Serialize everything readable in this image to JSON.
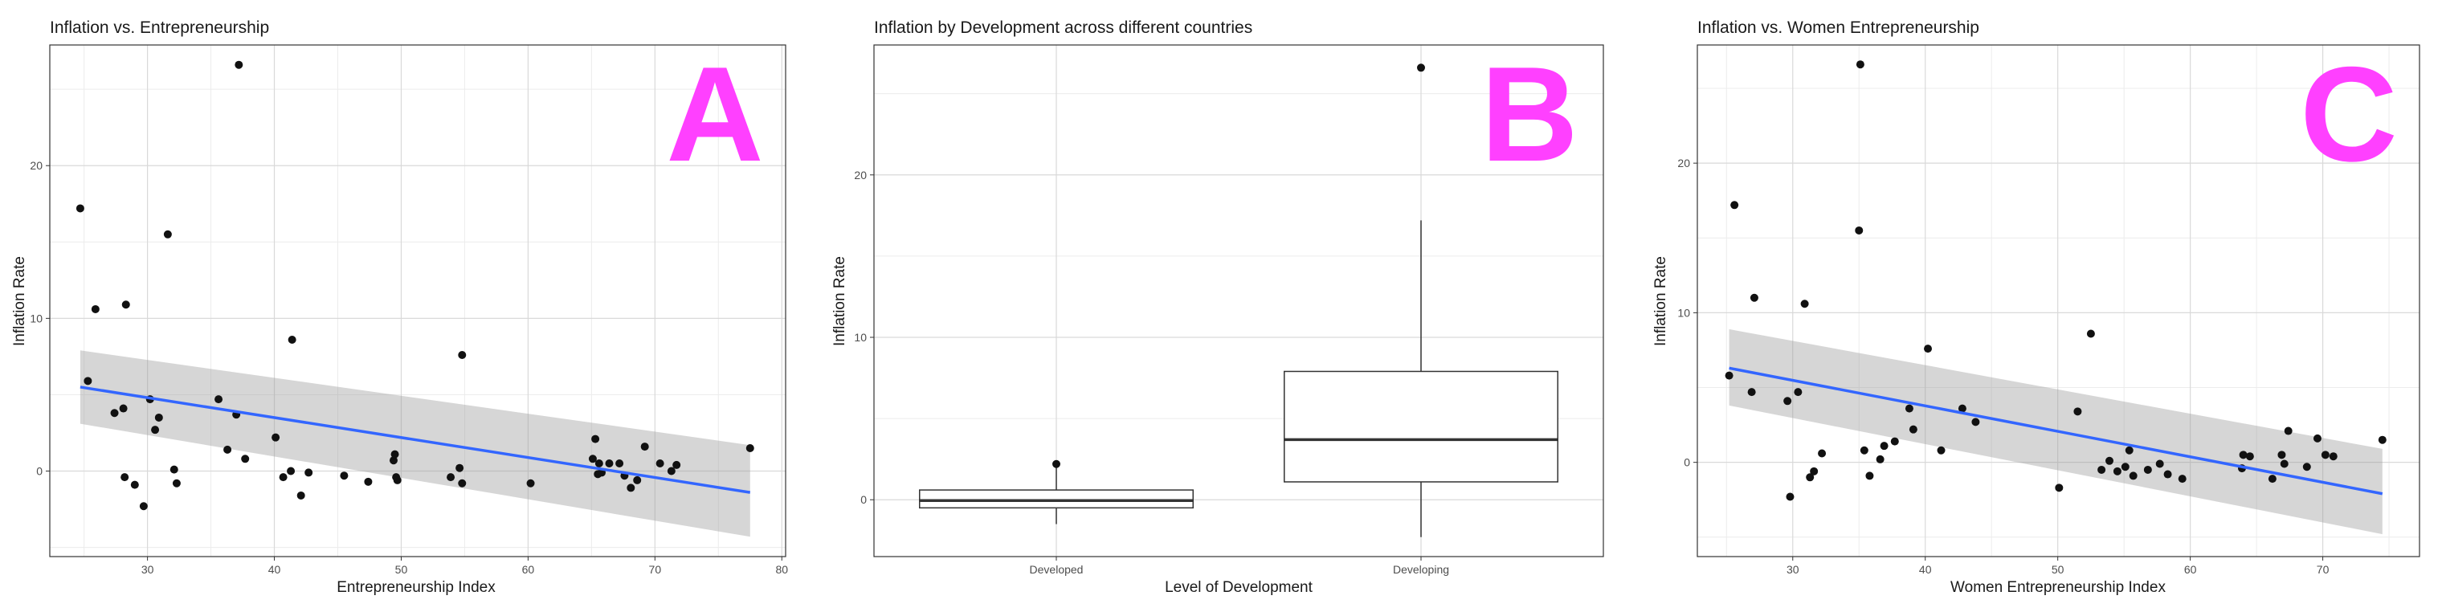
{
  "chart_data": [
    {
      "type": "scatter",
      "title": "Inflation vs. Entrepreneurship",
      "panel_label": "A",
      "xlabel": "Entrepreneurship Index",
      "ylabel": "Inflation Rate",
      "xlim": [
        22.3,
        80.3
      ],
      "ylim": [
        -5.6,
        27.9
      ],
      "xticks": [
        30,
        40,
        50,
        60,
        70,
        80
      ],
      "yticks": [
        0,
        10,
        20
      ],
      "grid": true,
      "points": {
        "x": [
          24.7,
          25.3,
          25.9,
          27.4,
          28.1,
          28.2,
          28.3,
          29.0,
          29.7,
          30.2,
          30.6,
          30.9,
          31.6,
          32.1,
          32.3,
          35.6,
          36.3,
          37.0,
          37.2,
          37.7,
          40.1,
          40.7,
          41.3,
          41.4,
          42.1,
          42.7,
          45.5,
          47.4,
          49.4,
          49.5,
          49.6,
          49.7,
          53.9,
          54.6,
          54.8,
          54.8,
          60.2,
          65.1,
          65.3,
          65.5,
          65.6,
          65.8,
          66.4,
          67.2,
          67.6,
          68.1,
          68.6,
          69.2,
          70.4,
          71.3,
          71.7,
          77.5
        ],
        "y": [
          17.2,
          5.9,
          10.6,
          3.8,
          4.1,
          -0.4,
          10.9,
          -0.9,
          -2.3,
          4.7,
          2.7,
          3.5,
          15.5,
          0.1,
          -0.8,
          4.7,
          1.4,
          3.7,
          26.6,
          0.8,
          2.2,
          -0.4,
          0.0,
          8.6,
          -1.6,
          -0.1,
          -0.3,
          -0.7,
          0.7,
          1.1,
          -0.4,
          -0.6,
          -0.4,
          0.2,
          7.6,
          -0.8,
          -0.8,
          0.8,
          2.1,
          -0.2,
          0.5,
          -0.1,
          0.5,
          0.5,
          -0.3,
          -1.1,
          -0.6,
          1.6,
          0.5,
          0.0,
          0.4,
          1.5
        ]
      },
      "trend": {
        "x": [
          24.7,
          77.5
        ],
        "y": [
          5.5,
          -1.4
        ],
        "ci_lower": [
          3.1,
          -4.3
        ],
        "ci_upper": [
          7.9,
          1.7
        ]
      }
    },
    {
      "type": "box",
      "title": "Inflation by Development across different countries",
      "panel_label": "B",
      "xlabel": "Level of Development",
      "ylabel": "Inflation Rate",
      "ylim": [
        -3.5,
        28.0
      ],
      "yticks": [
        0,
        10,
        20
      ],
      "grid": true,
      "categories": [
        "Developed",
        "Developing"
      ],
      "boxes": [
        {
          "whisker_low": -1.5,
          "q1": -0.5,
          "median": -0.05,
          "q3": 0.6,
          "whisker_high": 2.0,
          "outliers": [
            2.2
          ]
        },
        {
          "whisker_low": -2.3,
          "q1": 1.1,
          "median": 3.7,
          "q3": 7.9,
          "whisker_high": 17.2,
          "outliers": [
            26.6
          ]
        }
      ]
    },
    {
      "type": "scatter",
      "title": "Inflation vs. Women Entrepreneurship",
      "panel_label": "C",
      "xlabel": "Women Entrepreneurship Index",
      "ylabel": "Inflation Rate",
      "xlim": [
        22.8,
        77.3
      ],
      "ylim": [
        -6.3,
        27.9
      ],
      "xticks": [
        30,
        40,
        50,
        60,
        70
      ],
      "yticks": [
        0,
        10,
        20
      ],
      "grid": true,
      "points": {
        "x": [
          25.2,
          25.6,
          26.9,
          27.1,
          29.6,
          29.8,
          30.4,
          30.9,
          31.3,
          31.6,
          32.2,
          35.0,
          35.1,
          35.4,
          35.8,
          36.6,
          36.9,
          37.7,
          38.8,
          39.1,
          40.2,
          41.2,
          42.8,
          43.8,
          50.1,
          51.5,
          52.5,
          53.3,
          53.9,
          54.5,
          55.1,
          55.4,
          55.7,
          56.8,
          57.7,
          58.3,
          59.4,
          63.9,
          64.0,
          64.5,
          66.2,
          66.9,
          67.1,
          67.4,
          68.8,
          69.6,
          70.2,
          70.8,
          74.5
        ],
        "y": [
          5.8,
          17.2,
          4.7,
          11.0,
          4.1,
          -2.3,
          4.7,
          10.6,
          -1.0,
          -0.6,
          0.6,
          15.5,
          26.6,
          0.8,
          -0.9,
          0.2,
          1.1,
          1.4,
          3.6,
          2.2,
          7.6,
          0.8,
          3.6,
          2.7,
          -1.7,
          3.4,
          8.6,
          -0.5,
          0.1,
          -0.6,
          -0.3,
          0.8,
          -0.9,
          -0.5,
          -0.1,
          -0.8,
          -1.1,
          -0.4,
          0.5,
          0.4,
          -1.1,
          0.5,
          -0.1,
          2.1,
          -0.3,
          1.6,
          0.5,
          0.4,
          1.5
        ]
      },
      "trend": {
        "x": [
          25.2,
          74.5
        ],
        "y": [
          6.3,
          -2.1
        ],
        "ci_lower": [
          3.8,
          -4.8
        ],
        "ci_upper": [
          8.9,
          0.9
        ]
      }
    }
  ]
}
